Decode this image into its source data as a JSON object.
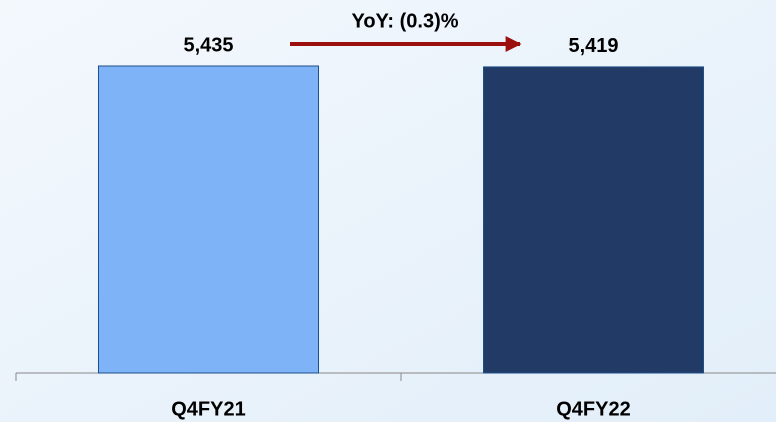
{
  "chart_data": {
    "type": "bar",
    "annotation": "YoY: (0.3)%",
    "categories": [
      "Q4FY21",
      "Q4FY22"
    ],
    "values": [
      5435,
      5419
    ],
    "value_labels": [
      "5,435",
      "5,419"
    ],
    "colors": [
      "#7fb3f8",
      "#213a66"
    ]
  }
}
